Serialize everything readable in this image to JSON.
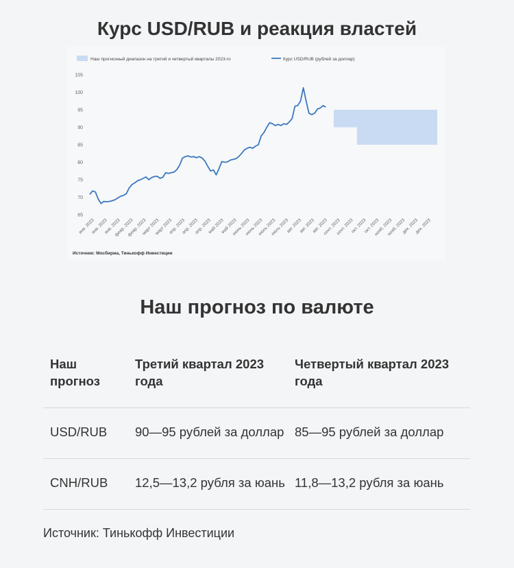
{
  "page": {
    "title": "Курс USD/RUB и реакция властей",
    "subtitle": "Наш прогноз по валюте",
    "source": "Источник: Тинькофф Инвестиции"
  },
  "chart_data": {
    "type": "line",
    "legend": {
      "range_label": "Наш прогнозный диапазон на третий и четвертый кварталы 2023-го",
      "line_label": "Курс USD/RUB (рублей за доллар)",
      "placement": "top-left"
    },
    "source": "Источник: Мосбиржа, Тинькофф Инвестиции",
    "ylim": [
      65,
      105
    ],
    "yticks": [
      65,
      70,
      75,
      80,
      85,
      90,
      95,
      100,
      105
    ],
    "grid": false,
    "x_tick_labels": [
      "янв. 2023",
      "янв. 2023",
      "янв. 2023",
      "февр. 2023",
      "февр. 2023",
      "март 2023",
      "март 2023",
      "апр. 2023",
      "апр. 2023",
      "апр. 2023",
      "май 2023",
      "май 2023",
      "июнь 2023",
      "июнь 2023",
      "июль 2023",
      "июль 2023",
      "авг. 2023",
      "авг. 2023",
      "авг. 2023",
      "сент. 2023",
      "сент. 2023",
      "окт. 2023",
      "окт. 2023",
      "нояб. 2023",
      "нояб. 2023",
      "дек. 2023",
      "дек. 2023"
    ],
    "series": [
      {
        "name": "Курс USD/RUB (рублей за доллар)",
        "color": "#3a78bf",
        "values": [
          70.8,
          71.8,
          71.5,
          69.5,
          68.2,
          68.8,
          68.7,
          68.8,
          69.0,
          69.3,
          69.8,
          70.3,
          70.5,
          71.0,
          72.6,
          73.6,
          74.1,
          74.7,
          75.0,
          75.4,
          75.8,
          75.0,
          75.6,
          75.9,
          76.0,
          75.4,
          75.7,
          77.0,
          76.8,
          77.0,
          77.2,
          77.9,
          79.2,
          81.2,
          81.6,
          81.8,
          81.5,
          81.6,
          81.3,
          81.6,
          81.2,
          80.3,
          78.8,
          77.5,
          77.8,
          76.4,
          78.2,
          80.2,
          80.0,
          80.1,
          80.6,
          80.8,
          81.0,
          81.6,
          82.5,
          83.5,
          84.0,
          84.3,
          84.0,
          84.6,
          85.0,
          87.5,
          88.5,
          90.0,
          91.3,
          91.0,
          90.5,
          90.8,
          90.5,
          91.0,
          90.8,
          91.5,
          92.5,
          96.0,
          96.2,
          97.5,
          101.3,
          97.5,
          94.0,
          93.6,
          94.0,
          95.2,
          95.5,
          96.2,
          95.8
        ]
      },
      {
        "name": "Наш прогнозный диапазон на третий и четвертый кварталы 2023-го",
        "color": "#c9daf3",
        "ranges": [
          {
            "period": "Q3 2023",
            "low": 90,
            "high": 95
          },
          {
            "period": "Q4 2023",
            "low": 85,
            "high": 95
          }
        ]
      }
    ]
  },
  "forecast_table": {
    "headers": [
      "Наш прогноз",
      "Третий квартал 2023 года",
      "Четвертый квартал 2023 года"
    ],
    "rows": [
      [
        "USD/RUB",
        "90—95 рублей за доллар",
        "85—95 рублей за доллар"
      ],
      [
        "CNH/RUB",
        "12,5—13,2 рубля за юань",
        "11,8—13,2 рубля за юань"
      ]
    ]
  }
}
